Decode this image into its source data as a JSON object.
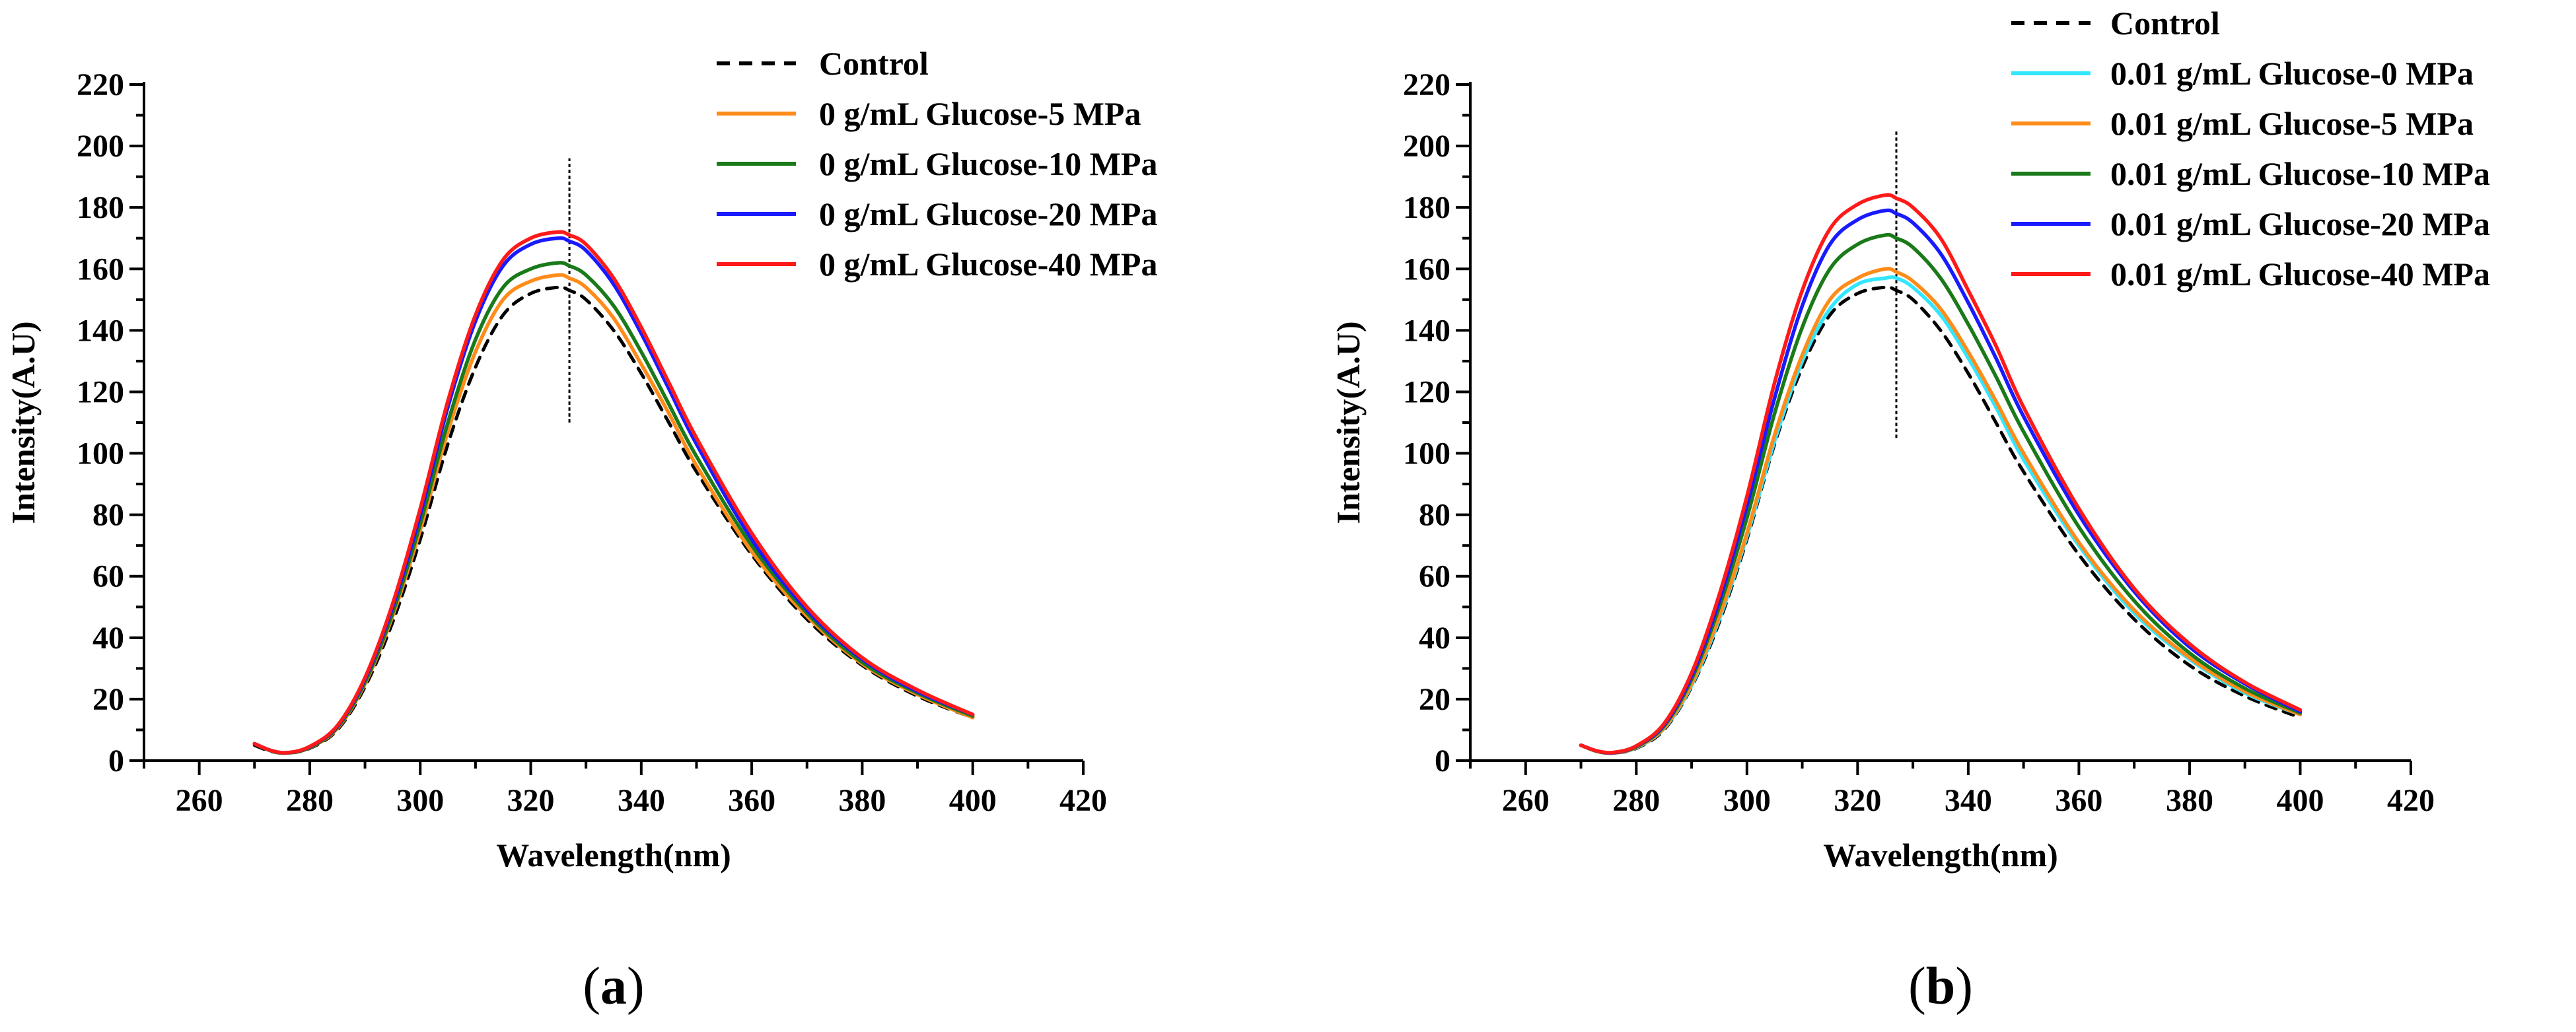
{
  "chart_data": [
    {
      "type": "line",
      "panel_label": {
        "open": "(",
        "letter": "a",
        "close": ")"
      },
      "xlabel": "Wavelength(nm)",
      "ylabel": "Intensity(A.U)",
      "xlim": [
        250,
        420
      ],
      "ylim": [
        0,
        220
      ],
      "xticks": [
        260,
        280,
        300,
        320,
        340,
        360,
        380,
        400,
        420
      ],
      "yticks": [
        0,
        20,
        40,
        60,
        80,
        100,
        120,
        140,
        160,
        180,
        200,
        220
      ],
      "grid": false,
      "legend_position": "top-right",
      "peak_marker": {
        "x": 327,
        "y_range": [
          110,
          196
        ]
      },
      "series": [
        {
          "name": "Control",
          "color": "#000000",
          "dash": "dashed",
          "x": [
            270,
            273,
            276,
            280,
            285,
            290,
            295,
            300,
            305,
            310,
            315,
            320,
            325,
            327,
            330,
            335,
            340,
            345,
            350,
            360,
            370,
            380,
            390,
            400
          ],
          "y": [
            5,
            3,
            2.5,
            4,
            10,
            24,
            45,
            72,
            103,
            128,
            145,
            152,
            154,
            153,
            150,
            140,
            126,
            110,
            94,
            67,
            46,
            31,
            21,
            14
          ]
        },
        {
          "name": "0 g/mL Glucose-5 MPa",
          "color": "#ff8c1a",
          "dash": "solid",
          "x": [
            270,
            273,
            276,
            280,
            285,
            290,
            295,
            300,
            305,
            310,
            315,
            320,
            325,
            327,
            330,
            335,
            340,
            345,
            350,
            360,
            370,
            380,
            390,
            400
          ],
          "y": [
            5.5,
            3.2,
            2.5,
            4.2,
            10.5,
            25,
            47,
            75,
            107,
            133,
            150,
            156,
            158,
            157,
            154,
            144,
            129,
            113,
            96,
            68,
            47,
            31.5,
            21.5,
            14
          ]
        },
        {
          "name": "0 g/mL Glucose-10 MPa",
          "color": "#1a7a1a",
          "dash": "solid",
          "x": [
            270,
            273,
            276,
            280,
            285,
            290,
            295,
            300,
            305,
            310,
            315,
            320,
            325,
            327,
            330,
            335,
            340,
            345,
            350,
            360,
            370,
            380,
            390,
            400
          ],
          "y": [
            5.5,
            3.2,
            2.5,
            4.3,
            10.8,
            25.5,
            48,
            77,
            110,
            137,
            154,
            160,
            162,
            161,
            158,
            148,
            133,
            116,
            99,
            70,
            48,
            32,
            22,
            14.5
          ]
        },
        {
          "name": "0 g/mL Glucose-20 MPa",
          "color": "#1a1aff",
          "dash": "solid",
          "x": [
            270,
            273,
            276,
            280,
            285,
            290,
            295,
            300,
            305,
            310,
            315,
            320,
            325,
            327,
            330,
            335,
            340,
            345,
            350,
            360,
            370,
            380,
            390,
            400
          ],
          "y": [
            5.5,
            3.3,
            2.6,
            4.5,
            11.2,
            26.5,
            50,
            80,
            115,
            143,
            161,
            168,
            170,
            169,
            166,
            155,
            139,
            121,
            103,
            72,
            49,
            33,
            22.5,
            15
          ]
        },
        {
          "name": "0 g/mL Glucose-40 MPa",
          "color": "#ff1a1a",
          "dash": "solid",
          "x": [
            270,
            273,
            276,
            280,
            285,
            290,
            295,
            300,
            305,
            310,
            315,
            320,
            325,
            327,
            330,
            335,
            340,
            345,
            350,
            360,
            370,
            380,
            390,
            400
          ],
          "y": [
            5.5,
            3.3,
            2.6,
            4.6,
            11.4,
            27,
            51,
            82,
            117,
            145,
            163,
            170,
            172,
            171,
            168,
            157,
            141,
            123,
            105,
            74,
            50,
            33.5,
            23,
            15
          ]
        }
      ]
    },
    {
      "type": "line",
      "panel_label": {
        "open": "(",
        "letter": "b",
        "close": ")"
      },
      "xlabel": "Wavelength(nm)",
      "ylabel": "Intensity(A.U)",
      "xlim": [
        250,
        420
      ],
      "ylim": [
        0,
        220
      ],
      "xticks": [
        260,
        280,
        300,
        320,
        340,
        360,
        380,
        400,
        420
      ],
      "yticks": [
        0,
        20,
        40,
        60,
        80,
        100,
        120,
        140,
        160,
        180,
        200,
        220
      ],
      "grid": false,
      "legend_position": "top-right",
      "peak_marker": {
        "x": 327,
        "y_range": [
          105,
          205
        ]
      },
      "series": [
        {
          "name": "Control",
          "color": "#000000",
          "dash": "dashed",
          "x": [
            270,
            273,
            276,
            280,
            285,
            290,
            295,
            300,
            305,
            310,
            315,
            320,
            325,
            327,
            330,
            335,
            340,
            345,
            350,
            360,
            370,
            380,
            390,
            400
          ],
          "y": [
            5,
            3,
            2.5,
            4,
            10,
            24,
            45,
            72,
            103,
            128,
            145,
            152,
            154,
            153,
            150,
            140,
            126,
            110,
            94,
            67,
            46,
            31,
            21,
            14
          ]
        },
        {
          "name": "0.01 g/mL Glucose-0 MPa",
          "color": "#33e6ff",
          "dash": "solid",
          "x": [
            270,
            273,
            276,
            280,
            285,
            290,
            295,
            300,
            305,
            310,
            315,
            320,
            325,
            327,
            330,
            335,
            340,
            345,
            350,
            360,
            370,
            380,
            390,
            400
          ],
          "y": [
            5,
            3,
            2.5,
            4.2,
            10.4,
            24.5,
            46,
            73,
            104,
            130,
            147,
            155,
            157,
            157,
            154,
            145,
            131,
            115,
            98,
            70,
            48,
            33,
            22,
            15
          ]
        },
        {
          "name": "0.01 g/mL Glucose-5 MPa",
          "color": "#ff8c1a",
          "dash": "solid",
          "x": [
            270,
            273,
            276,
            280,
            285,
            290,
            295,
            300,
            305,
            310,
            315,
            320,
            325,
            327,
            330,
            335,
            340,
            345,
            350,
            360,
            370,
            380,
            390,
            400
          ],
          "y": [
            5,
            3,
            2.5,
            4.3,
            10.6,
            25,
            47,
            74,
            106,
            132,
            150,
            157,
            160,
            159,
            156,
            147,
            133,
            117,
            100,
            71,
            49,
            33.5,
            22.5,
            15
          ]
        },
        {
          "name": "0.01 g/mL Glucose-10 MPa",
          "color": "#1a7a1a",
          "dash": "solid",
          "x": [
            270,
            273,
            276,
            280,
            285,
            290,
            295,
            300,
            305,
            310,
            315,
            320,
            325,
            327,
            330,
            335,
            340,
            345,
            350,
            360,
            370,
            380,
            390,
            400
          ],
          "y": [
            5,
            3,
            2.6,
            4.5,
            11.2,
            26.5,
            50,
            79,
            113,
            141,
            160,
            168,
            171,
            170,
            167,
            157,
            142,
            125,
            107,
            76,
            52,
            35,
            23.5,
            15.5
          ]
        },
        {
          "name": "0.01 g/mL Glucose-20 MPa",
          "color": "#1a1aff",
          "dash": "solid",
          "x": [
            270,
            273,
            276,
            280,
            285,
            290,
            295,
            300,
            305,
            310,
            315,
            320,
            325,
            327,
            330,
            335,
            340,
            345,
            350,
            360,
            370,
            380,
            390,
            400
          ],
          "y": [
            5,
            3.1,
            2.6,
            4.7,
            11.6,
            27.5,
            52,
            83,
            118,
            148,
            168,
            176,
            179,
            178,
            175,
            165,
            149,
            131,
            112,
            80,
            55,
            37,
            25,
            16
          ]
        },
        {
          "name": "0.01 g/mL Glucose-40 MPa",
          "color": "#ff1a1a",
          "dash": "solid",
          "x": [
            270,
            273,
            276,
            280,
            285,
            290,
            295,
            300,
            305,
            310,
            315,
            320,
            325,
            327,
            330,
            335,
            340,
            345,
            350,
            360,
            370,
            380,
            390,
            400
          ],
          "y": [
            5,
            3.1,
            2.7,
            4.8,
            12,
            28.5,
            54,
            86,
            123,
            153,
            173,
            181,
            184,
            183,
            180,
            170,
            153,
            135,
            115,
            82,
            56,
            38,
            25.5,
            16.5
          ]
        }
      ]
    }
  ]
}
